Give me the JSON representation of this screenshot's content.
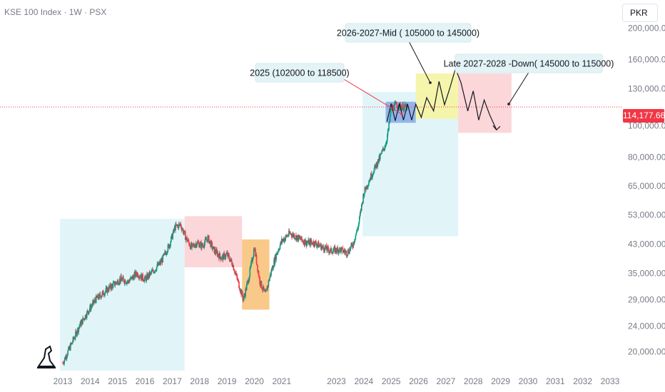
{
  "header": {
    "title": "KSE 100 Index · 1W · PSX"
  },
  "currency": "PKR",
  "current_price_label": "114,177.66",
  "colors": {
    "price_line": "#f23645",
    "candle_up": "#089981",
    "candle_down": "#f23645",
    "zone_cyan": "#dcf3f8",
    "zone_red": "#fbd5d8",
    "zone_orange": "#f9c98a",
    "zone_yellow": "#f4f4a6",
    "zone_blue": "#93b4ea"
  },
  "chart_data": {
    "type": "line",
    "scale": "log",
    "ylim": [
      17500,
      230000
    ],
    "xlim": [
      2012.75,
      2033.4
    ],
    "yticks": [
      {
        "value": 20000,
        "label": "20,000.00"
      },
      {
        "value": 24000,
        "label": "24,000.00"
      },
      {
        "value": 29000,
        "label": "29,000.00"
      },
      {
        "value": 35000,
        "label": "35,000.00"
      },
      {
        "value": 43000,
        "label": "43,000.00"
      },
      {
        "value": 53000,
        "label": "53,000.00"
      },
      {
        "value": 65000,
        "label": "65,000.00"
      },
      {
        "value": 80000,
        "label": "80,000.00"
      },
      {
        "value": 100000,
        "label": "100,000.00"
      },
      {
        "value": 130000,
        "label": "130,000.00"
      },
      {
        "value": 160000,
        "label": "160,000.00"
      },
      {
        "value": 200000,
        "label": "200,000.00"
      }
    ],
    "xticks": [
      "2013",
      "2014",
      "2015",
      "2016",
      "2017",
      "2018",
      "2019",
      "2020",
      "2021",
      "2023",
      "2024",
      "2025",
      "2026",
      "2027",
      "2028",
      "2029",
      "2030",
      "2031",
      "2032",
      "2033"
    ],
    "xtick_years": [
      2013,
      2014,
      2015,
      2016,
      2017,
      2018,
      2019,
      2020,
      2021,
      2023,
      2024,
      2025,
      2026,
      2027,
      2028,
      2029,
      2030,
      2031,
      2032,
      2033
    ],
    "series": [
      {
        "x": [
          2013.0,
          2013.3,
          2013.6,
          2013.9,
          2014.2,
          2014.5,
          2014.8,
          2015.1,
          2015.4,
          2015.7,
          2016.0,
          2016.3,
          2016.6,
          2016.9,
          2017.1,
          2017.3,
          2017.5,
          2017.7,
          2017.9,
          2018.1,
          2018.3,
          2018.5,
          2018.8,
          2019.0,
          2019.2,
          2019.4,
          2019.6,
          2019.8,
          2020.0,
          2020.2,
          2020.4,
          2020.6,
          2020.8,
          2021.0,
          2021.3,
          2021.6,
          2021.9,
          2022.2,
          2022.5,
          2022.8,
          2023.1,
          2023.4,
          2023.6,
          2023.8,
          2024.0,
          2024.2,
          2024.4,
          2024.6,
          2024.8,
          2024.9,
          2025.0,
          2025.2,
          2025.4,
          2025.6
        ],
        "y": [
          18500,
          21000,
          24000,
          26500,
          29000,
          30500,
          32000,
          33500,
          33000,
          35000,
          33500,
          35500,
          38000,
          43000,
          48500,
          49500,
          45000,
          42000,
          43500,
          42500,
          45000,
          41500,
          39000,
          40000,
          37500,
          33000,
          29000,
          34000,
          42000,
          33000,
          30000,
          35000,
          40000,
          44000,
          46500,
          45000,
          43500,
          43500,
          42000,
          41000,
          41500,
          40500,
          43000,
          49000,
          62000,
          68000,
          74000,
          80000,
          88000,
          97000,
          113000,
          116000,
          114000,
          114177.66
        ]
      }
    ],
    "zones": [
      {
        "x0": 2012.9,
        "x1": 2017.45,
        "y0": 17500,
        "y1": 51500
      },
      {
        "x0": 2017.45,
        "x1": 2019.55,
        "y0": 36500,
        "y1": 52500
      },
      {
        "x0": 2019.55,
        "x1": 2020.55,
        "y0": 27000,
        "y1": 44500
      },
      {
        "x0": 2023.95,
        "x1": 2027.45,
        "y0": 45500,
        "y1": 127000
      },
      {
        "x0": 2024.8,
        "x1": 2025.9,
        "y0": 102000,
        "y1": 118500
      },
      {
        "x0": 2025.9,
        "x1": 2027.45,
        "y0": 105000,
        "y1": 145000
      },
      {
        "x0": 2027.45,
        "x1": 2029.4,
        "y0": 95000,
        "y1": 145000
      }
    ],
    "projection": {
      "x": [
        2024.85,
        2025.0,
        2025.15,
        2025.3,
        2025.45,
        2025.6,
        2025.75,
        2025.9,
        2026.1,
        2026.3,
        2026.55,
        2026.75,
        2026.95,
        2027.15,
        2027.35,
        2027.55,
        2027.8,
        2028.0,
        2028.2,
        2028.4,
        2028.6,
        2028.85
      ],
      "y": [
        103000,
        117000,
        103500,
        117000,
        104000,
        116500,
        104000,
        116500,
        106000,
        122000,
        111000,
        137000,
        116000,
        131000,
        150000,
        136000,
        111000,
        128000,
        104000,
        120000,
        108000,
        97000
      ]
    },
    "annotations": [
      {
        "text": "2025  (102000 to 118500)"
      },
      {
        "text": "2026-2027-Mid ( 105000 to 145000)"
      },
      {
        "text": "Late 2027-2028 -Down( 145000 to 115000)"
      }
    ]
  }
}
